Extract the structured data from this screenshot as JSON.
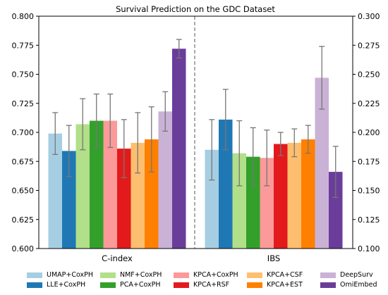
{
  "chart_data": {
    "type": "bar",
    "title": "Survival Prediction on the GDC Dataset",
    "categories": [
      "C-index",
      "IBS"
    ],
    "left_axis": {
      "ylim": [
        0.6,
        0.8
      ],
      "ticks": [
        "0.600",
        "0.625",
        "0.650",
        "0.675",
        "0.700",
        "0.725",
        "0.750",
        "0.775",
        "0.800"
      ]
    },
    "right_axis": {
      "ylim": [
        0.1,
        0.3
      ],
      "ticks": [
        "0.100",
        "0.125",
        "0.150",
        "0.175",
        "0.200",
        "0.225",
        "0.250",
        "0.275",
        "0.300"
      ]
    },
    "colors": [
      "#a6cee3",
      "#1f78b4",
      "#b2df8a",
      "#33a02c",
      "#fb9a99",
      "#e31a1c",
      "#fdbf6f",
      "#ff7f00",
      "#cab2d6",
      "#6a3d9a"
    ],
    "series": [
      {
        "name": "UMAP+CoxPH",
        "values": [
          0.699,
          0.185
        ],
        "errors": [
          0.018,
          0.026
        ]
      },
      {
        "name": "LLE+CoxPH",
        "values": [
          0.684,
          0.211
        ],
        "errors": [
          0.022,
          0.026
        ]
      },
      {
        "name": "NMF+CoxPH",
        "values": [
          0.707,
          0.182
        ],
        "errors": [
          0.022,
          0.028
        ]
      },
      {
        "name": "PCA+CoxPH",
        "values": [
          0.71,
          0.179
        ],
        "errors": [
          0.023,
          0.025
        ]
      },
      {
        "name": "KPCA+CoxPH",
        "values": [
          0.71,
          0.178
        ],
        "errors": [
          0.023,
          0.024
        ]
      },
      {
        "name": "KPCA+RSF",
        "values": [
          0.686,
          0.19
        ],
        "errors": [
          0.025,
          0.01
        ]
      },
      {
        "name": "KPCA+CSF",
        "values": [
          0.691,
          0.191
        ],
        "errors": [
          0.026,
          0.012
        ]
      },
      {
        "name": "KPCA+EST",
        "values": [
          0.694,
          0.194
        ],
        "errors": [
          0.028,
          0.012
        ]
      },
      {
        "name": "DeepSurv",
        "values": [
          0.718,
          0.247
        ],
        "errors": [
          0.017,
          0.027
        ]
      },
      {
        "name": "OmiEmbed",
        "values": [
          0.772,
          0.166
        ],
        "errors": [
          0.008,
          0.022
        ]
      }
    ],
    "divider": "dashed",
    "legend_position": "bottom"
  }
}
